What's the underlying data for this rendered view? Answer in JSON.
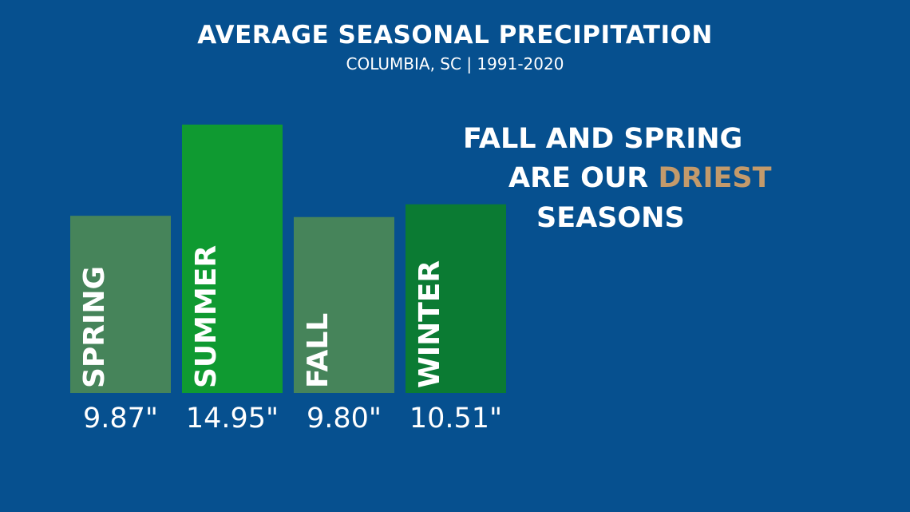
{
  "colors": {
    "background": "#06508f",
    "highlight": "#c39a6b"
  },
  "chart_data": {
    "type": "bar",
    "title": "AVERAGE SEASONAL PRECIPITATION",
    "subtitle": "COLUMBIA, SC | 1991-2020",
    "categories": [
      "SPRING",
      "SUMMER",
      "FALL",
      "WINTER"
    ],
    "values": [
      9.87,
      14.95,
      9.8,
      10.51
    ],
    "value_labels": [
      "9.87\"",
      "14.95\"",
      "9.80\"",
      "10.51\""
    ],
    "bar_colors": [
      "#46845a",
      "#0f9a31",
      "#46845a",
      "#0b7b33"
    ],
    "unit": "inches",
    "ylim": [
      0,
      14.95
    ],
    "grid": false,
    "legend": "none"
  },
  "annotation": {
    "line1": "FALL AND SPRING",
    "line2_prefix": "ARE OUR ",
    "line2_highlight": "DRIEST",
    "line3": "SEASONS"
  }
}
